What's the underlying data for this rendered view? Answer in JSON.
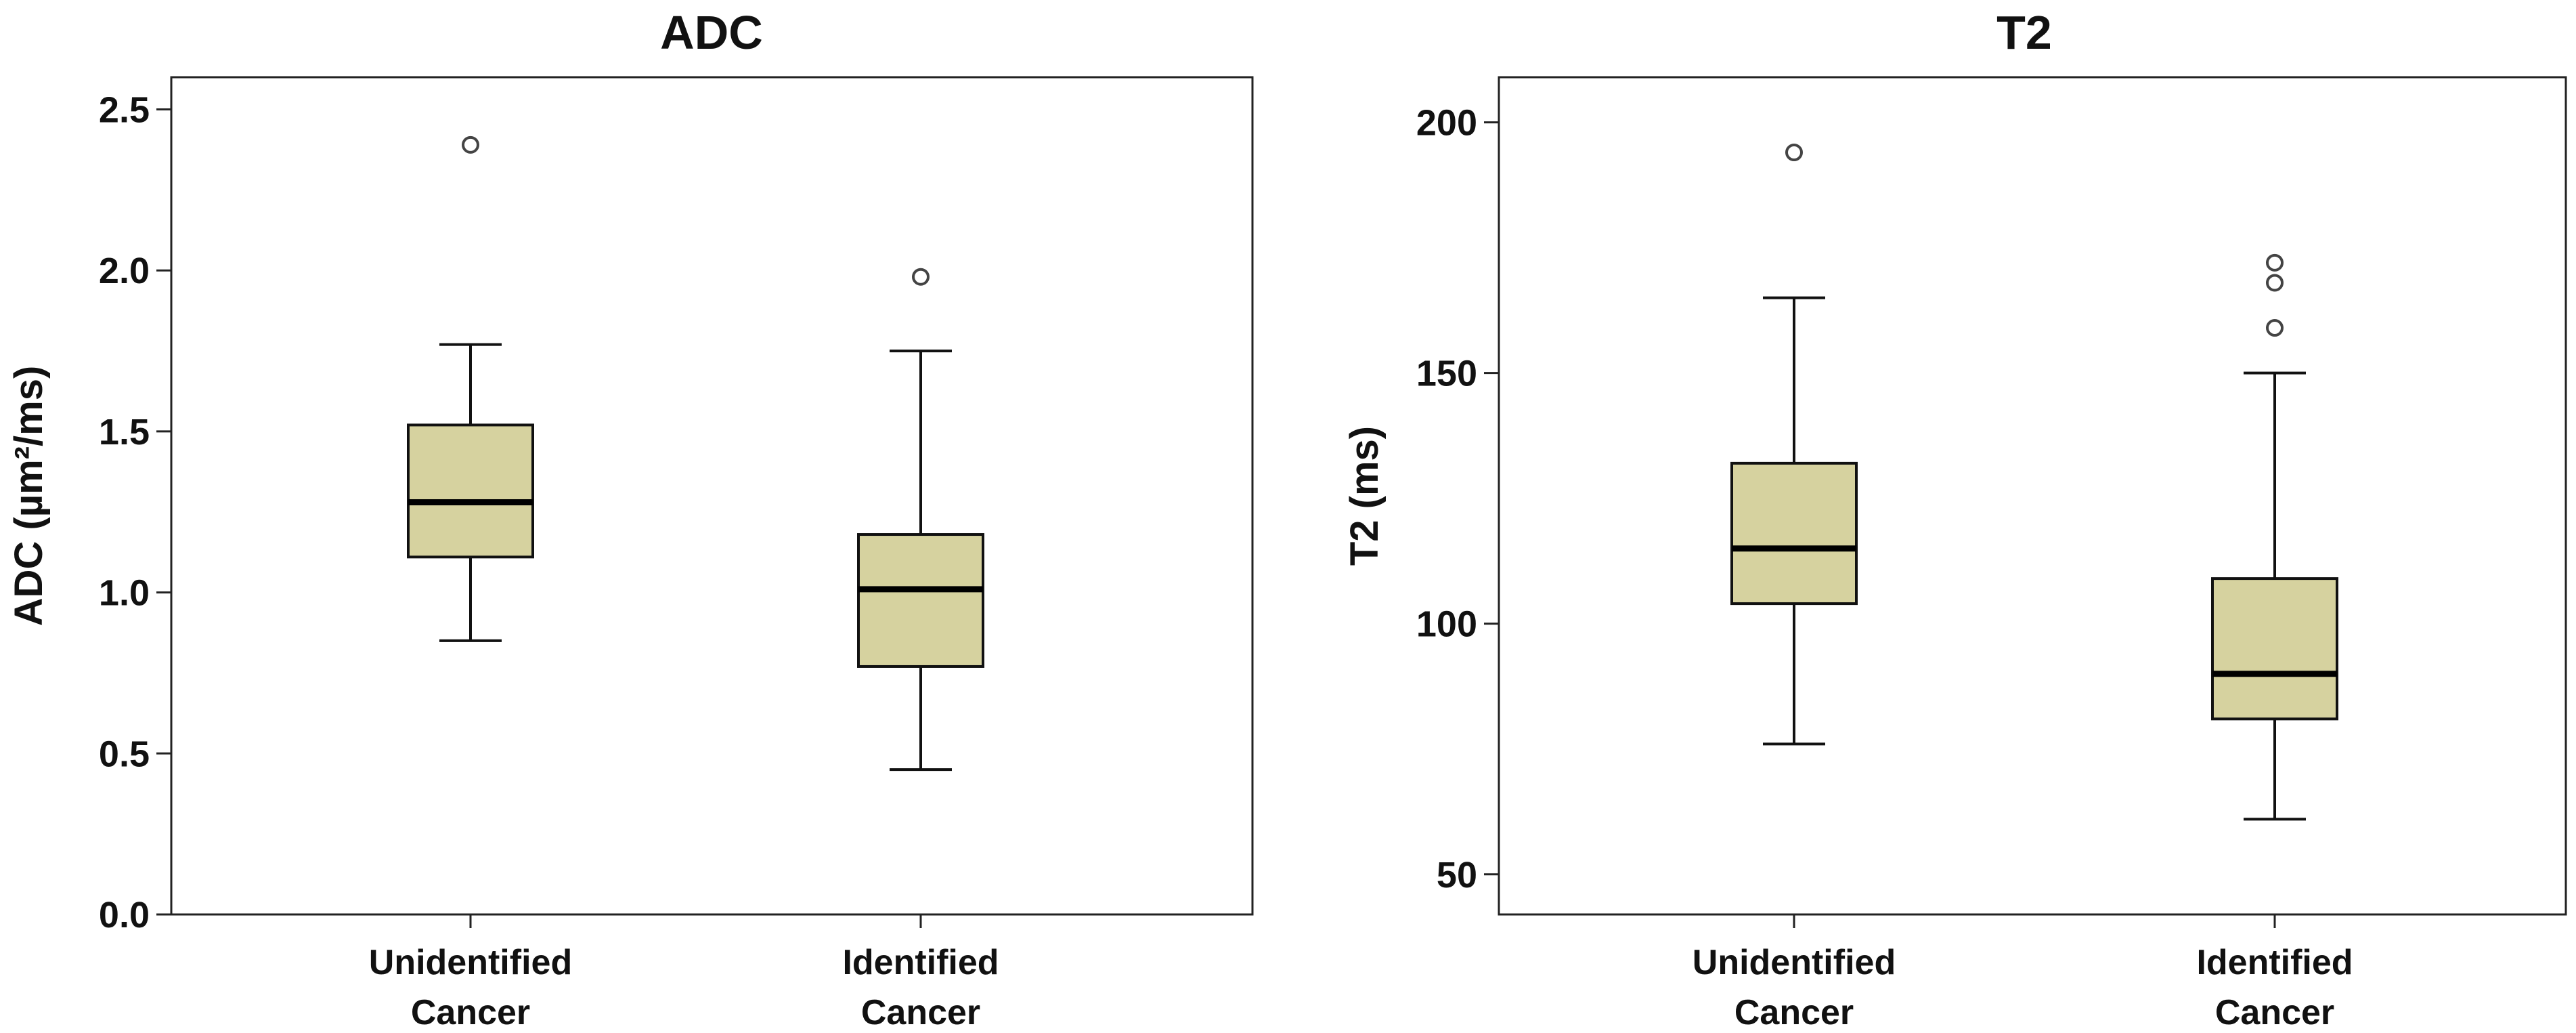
{
  "chart_data": [
    {
      "type": "box",
      "title": "ADC",
      "ylabel": "ADC (µm²/ms)",
      "ylim": [
        0.0,
        2.6
      ],
      "yticks": [
        0.0,
        0.5,
        1.0,
        1.5,
        2.0,
        2.5
      ],
      "ytick_labels": [
        "0.0",
        "0.5",
        "1.0",
        "1.5",
        "2.0",
        "2.5"
      ],
      "categories": [
        {
          "line1": "Unidentified",
          "line2": "Cancer"
        },
        {
          "line1": "Identified",
          "line2": "Cancer"
        }
      ],
      "boxes": [
        {
          "whisker_low": 0.85,
          "q1": 1.11,
          "median": 1.28,
          "q3": 1.52,
          "whisker_high": 1.77,
          "outliers": [
            2.39
          ]
        },
        {
          "whisker_low": 0.45,
          "q1": 0.77,
          "median": 1.01,
          "q3": 1.18,
          "whisker_high": 1.75,
          "outliers": [
            1.98
          ]
        }
      ],
      "box_color": "#d6d29f",
      "grid": false,
      "legend": "none"
    },
    {
      "type": "box",
      "title": "T2",
      "ylabel": "T2 (ms)",
      "ylim": [
        42,
        209
      ],
      "yticks": [
        50,
        100,
        150,
        200
      ],
      "ytick_labels": [
        "50",
        "100",
        "150",
        "200"
      ],
      "categories": [
        {
          "line1": "Unidentified",
          "line2": "Cancer"
        },
        {
          "line1": "Identified",
          "line2": "Cancer"
        }
      ],
      "boxes": [
        {
          "whisker_low": 76,
          "q1": 104,
          "median": 115,
          "q3": 132,
          "whisker_high": 165,
          "outliers": [
            194
          ]
        },
        {
          "whisker_low": 61,
          "q1": 81,
          "median": 90,
          "q3": 109,
          "whisker_high": 150,
          "outliers": [
            159,
            168,
            172
          ]
        }
      ],
      "box_color": "#d6d29f",
      "grid": false,
      "legend": "none"
    }
  ]
}
